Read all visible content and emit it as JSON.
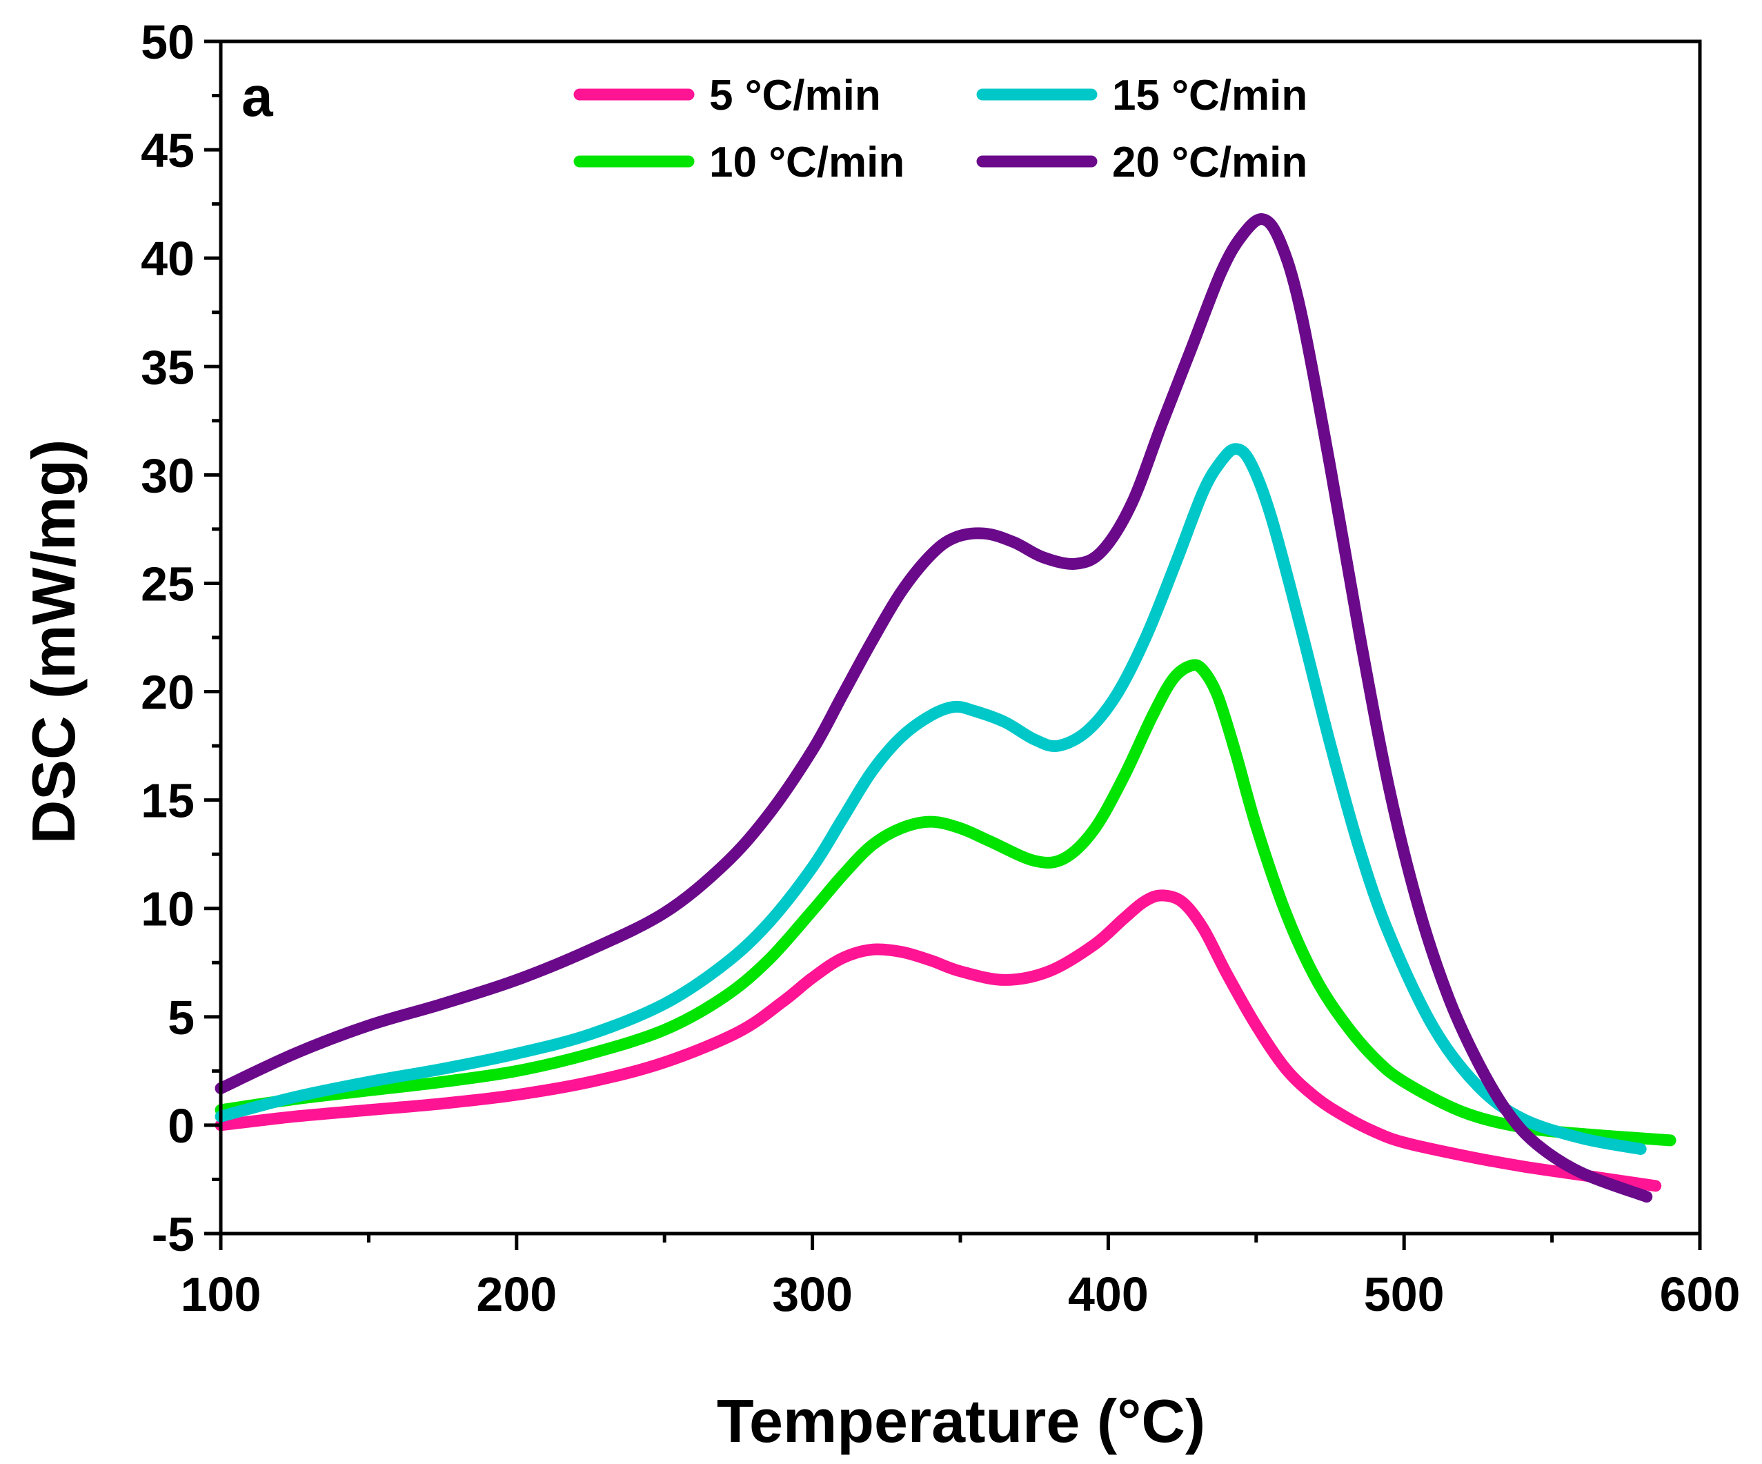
{
  "chart_data": {
    "type": "line",
    "panel_label": "a",
    "xlabel": "Temperature (°C)",
    "ylabel": "DSC (mW/mg)",
    "xlim": [
      100,
      600
    ],
    "ylim": [
      -5,
      50
    ],
    "xticks": [
      100,
      200,
      300,
      400,
      500,
      600
    ],
    "yticks": [
      -5,
      0,
      5,
      10,
      15,
      20,
      25,
      30,
      35,
      40,
      45,
      50
    ],
    "xticks_labels": [
      "100",
      "200",
      "300",
      "400",
      "500",
      "600"
    ],
    "yticks_labels": [
      "-5",
      "0",
      "5",
      "10",
      "15",
      "20",
      "25",
      "30",
      "35",
      "40",
      "45",
      "50"
    ],
    "legend_position": "top-center",
    "series": [
      {
        "name": "5 °C/min",
        "color": "#ff1493",
        "x": [
          100,
          125,
          150,
          175,
          200,
          225,
          250,
          275,
          290,
          300,
          310,
          320,
          330,
          340,
          350,
          365,
          380,
          395,
          405,
          412,
          418,
          425,
          432,
          440,
          450,
          460,
          470,
          480,
          490,
          500,
          520,
          540,
          560,
          585
        ],
        "y": [
          0.0,
          0.4,
          0.7,
          1.0,
          1.4,
          2.0,
          2.9,
          4.3,
          5.7,
          6.8,
          7.7,
          8.1,
          8.0,
          7.6,
          7.1,
          6.7,
          7.1,
          8.3,
          9.5,
          10.3,
          10.6,
          10.3,
          9.1,
          7.0,
          4.6,
          2.6,
          1.3,
          0.4,
          -0.3,
          -0.8,
          -1.4,
          -1.9,
          -2.3,
          -2.8
        ]
      },
      {
        "name": "10 °C/min",
        "color": "#00e400",
        "x": [
          100,
          125,
          150,
          175,
          200,
          225,
          250,
          270,
          285,
          300,
          310,
          320,
          330,
          340,
          350,
          360,
          375,
          385,
          395,
          405,
          415,
          422,
          428,
          432,
          437,
          443,
          450,
          460,
          470,
          480,
          490,
          500,
          520,
          540,
          560,
          590
        ],
        "y": [
          0.7,
          1.2,
          1.6,
          2.0,
          2.5,
          3.3,
          4.4,
          5.9,
          7.6,
          9.9,
          11.5,
          12.9,
          13.7,
          14.0,
          13.7,
          13.1,
          12.2,
          12.3,
          13.6,
          16.0,
          18.9,
          20.6,
          21.2,
          21.0,
          19.8,
          17.2,
          13.8,
          9.8,
          6.8,
          4.7,
          3.1,
          2.0,
          0.6,
          -0.1,
          -0.4,
          -0.7
        ]
      },
      {
        "name": "15 °C/min",
        "color": "#00c8c8",
        "x": [
          100,
          125,
          150,
          175,
          200,
          225,
          250,
          270,
          285,
          300,
          310,
          320,
          330,
          340,
          348,
          355,
          365,
          375,
          383,
          393,
          403,
          413,
          423,
          432,
          438,
          443,
          448,
          455,
          465,
          475,
          485,
          495,
          510,
          525,
          540,
          560,
          580
        ],
        "y": [
          0.4,
          1.3,
          2.0,
          2.6,
          3.3,
          4.2,
          5.6,
          7.4,
          9.3,
          11.9,
          14.1,
          16.3,
          17.9,
          18.9,
          19.3,
          19.1,
          18.6,
          17.8,
          17.5,
          18.2,
          19.9,
          22.6,
          26.0,
          29.2,
          30.6,
          31.2,
          30.6,
          28.1,
          23.0,
          17.6,
          12.7,
          8.8,
          4.5,
          1.8,
          0.3,
          -0.6,
          -1.1
        ]
      },
      {
        "name": "20 °C/min",
        "color": "#6a0a8a",
        "x": [
          100,
          125,
          150,
          175,
          200,
          225,
          250,
          270,
          285,
          300,
          310,
          320,
          330,
          340,
          348,
          358,
          368,
          378,
          389,
          398,
          408,
          418,
          428,
          438,
          445,
          452,
          458,
          465,
          475,
          485,
          495,
          505,
          515,
          525,
          535,
          545,
          560,
          582
        ],
        "y": [
          1.7,
          3.3,
          4.6,
          5.6,
          6.7,
          8.1,
          9.8,
          12.0,
          14.3,
          17.3,
          19.8,
          22.3,
          24.6,
          26.3,
          27.1,
          27.3,
          26.9,
          26.2,
          25.9,
          26.5,
          28.7,
          32.3,
          35.8,
          39.3,
          41.0,
          41.8,
          40.8,
          37.6,
          30.4,
          22.6,
          15.5,
          10.0,
          5.9,
          2.9,
          0.6,
          -0.9,
          -2.2,
          -3.3
        ]
      }
    ]
  }
}
